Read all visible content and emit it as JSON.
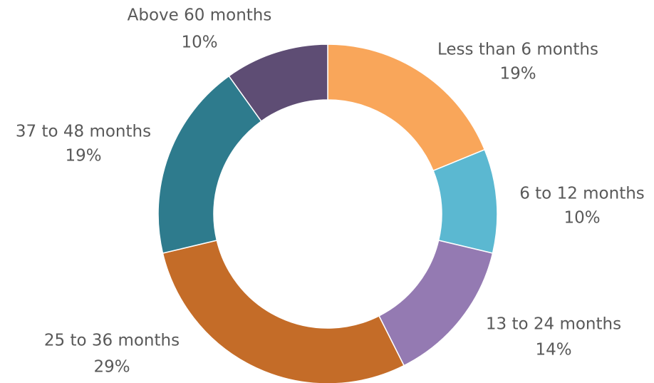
{
  "chart_data": {
    "type": "donut",
    "categories": [
      "Less than 6 months",
      "6 to 12 months",
      "13 to 24 months",
      "25 to 36 months",
      "37 to 48 months",
      "Above 60 months"
    ],
    "values": [
      19,
      10,
      14,
      29,
      19,
      10
    ],
    "value_labels": [
      "19%",
      "10%",
      "14%",
      "29%",
      "19%",
      "10%"
    ],
    "colors": [
      "#f9a65a",
      "#5bb8d1",
      "#947ab2",
      "#c46c28",
      "#2e7b8d",
      "#5e4d74"
    ]
  }
}
